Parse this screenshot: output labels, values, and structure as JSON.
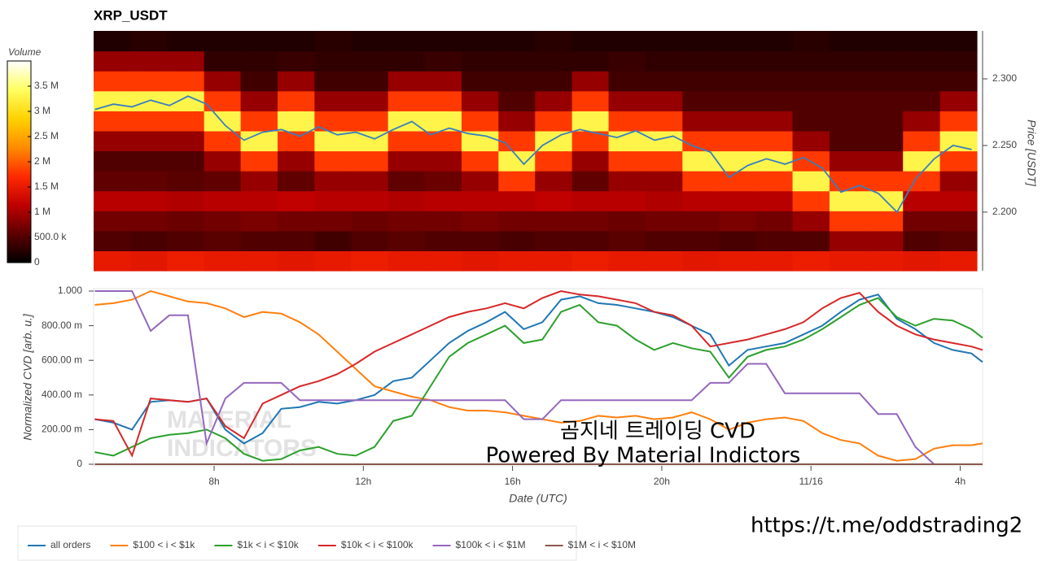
{
  "chart_data": [
    {
      "type": "heatmap",
      "title": "XRP_USDT",
      "x_edges": [
        4.77,
        5.76,
        6.74,
        7.73,
        8.71,
        9.7,
        10.69,
        11.67,
        12.66,
        13.64,
        14.63,
        15.62,
        16.6,
        17.59,
        18.57,
        19.56,
        20.55,
        21.53,
        22.52,
        23.5,
        24.49,
        25.48,
        26.46,
        27.45,
        28.44
      ],
      "y_edges": [
        2.156,
        2.171,
        2.186,
        2.201,
        2.216,
        2.231,
        2.246,
        2.261,
        2.276,
        2.291,
        2.306,
        2.321,
        2.336
      ],
      "values": [
        [
          1500000,
          1450000,
          1550000,
          1500000,
          1500000,
          1450000,
          1500000,
          1550000,
          1500000,
          1500000,
          1450000,
          1500000,
          1500000,
          1550000,
          1500000,
          1500000,
          1450000,
          1500000,
          1500000,
          1550000,
          1500000,
          1500000,
          1450000,
          1500000
        ],
        [
          500000,
          450000,
          500000,
          550000,
          500000,
          500000,
          400000,
          500000,
          550000,
          500000,
          500000,
          450000,
          500000,
          500000,
          550000,
          500000,
          500000,
          450000,
          500000,
          500000,
          900000,
          900000,
          500000,
          550000
        ],
        [
          700000,
          700000,
          650000,
          700000,
          750000,
          700000,
          700000,
          650000,
          700000,
          700000,
          750000,
          700000,
          700000,
          700000,
          650000,
          700000,
          700000,
          750000,
          700000,
          900000,
          1800000,
          1800000,
          700000,
          700000
        ],
        [
          1100000,
          1100000,
          1050000,
          1100000,
          1100000,
          1150000,
          1100000,
          1100000,
          1050000,
          1100000,
          1100000,
          1100000,
          1150000,
          1100000,
          1100000,
          1050000,
          1100000,
          1100000,
          1100000,
          1800000,
          3300000,
          3300000,
          1100000,
          1100000
        ],
        [
          600000,
          600000,
          550000,
          600000,
          900000,
          600000,
          900000,
          900000,
          600000,
          650000,
          900000,
          1800000,
          900000,
          600000,
          900000,
          900000,
          1800000,
          1800000,
          1800000,
          3300000,
          1800000,
          1800000,
          1800000,
          900000
        ],
        [
          500000,
          500000,
          500000,
          900000,
          1800000,
          900000,
          1800000,
          1800000,
          900000,
          900000,
          1800000,
          3300000,
          1800000,
          900000,
          1800000,
          1800000,
          3300000,
          3300000,
          3300000,
          1800000,
          900000,
          900000,
          3300000,
          1800000
        ],
        [
          900000,
          900000,
          900000,
          1800000,
          3300000,
          1800000,
          3300000,
          3300000,
          1800000,
          1800000,
          3300000,
          1800000,
          3300000,
          1800000,
          3300000,
          3300000,
          1800000,
          1800000,
          1800000,
          900000,
          500000,
          500000,
          1800000,
          3300000
        ],
        [
          1800000,
          1800000,
          1800000,
          3300000,
          1800000,
          3300000,
          1800000,
          1800000,
          3300000,
          3300000,
          1800000,
          900000,
          1800000,
          3300000,
          1800000,
          1800000,
          900000,
          900000,
          900000,
          500000,
          500000,
          500000,
          900000,
          1800000
        ],
        [
          3300000,
          3300000,
          3300000,
          1800000,
          900000,
          1800000,
          900000,
          900000,
          1800000,
          1800000,
          900000,
          500000,
          900000,
          1800000,
          900000,
          900000,
          500000,
          500000,
          500000,
          500000,
          500000,
          500000,
          500000,
          900000
        ],
        [
          1800000,
          1800000,
          1800000,
          900000,
          400000,
          900000,
          400000,
          400000,
          900000,
          900000,
          400000,
          400000,
          400000,
          900000,
          400000,
          400000,
          400000,
          400000,
          400000,
          400000,
          400000,
          400000,
          400000,
          400000
        ],
        [
          900000,
          900000,
          900000,
          300000,
          300000,
          350000,
          300000,
          300000,
          300000,
          350000,
          300000,
          300000,
          300000,
          300000,
          350000,
          300000,
          300000,
          300000,
          300000,
          300000,
          300000,
          300000,
          300000,
          300000
        ],
        [
          200000,
          250000,
          200000,
          200000,
          200000,
          200000,
          250000,
          200000,
          200000,
          200000,
          200000,
          200000,
          250000,
          200000,
          200000,
          200000,
          200000,
          200000,
          200000,
          250000,
          200000,
          200000,
          200000,
          200000
        ]
      ],
      "colorscale": [
        "#000000",
        "#5c0000",
        "#c00000",
        "#ff2a00",
        "#ff8c00",
        "#ffd200",
        "#ffff60",
        "#ffffff"
      ],
      "colorbar": {
        "title": "Volume",
        "lim": [
          0,
          4000000
        ],
        "ticks": [
          0,
          {
            "value": 500000,
            "label": "500.0 k"
          },
          {
            "value": 1000000,
            "label": "1 M"
          },
          {
            "value": 1500000,
            "label": "1.5 M"
          },
          {
            "value": 2000000,
            "label": "2 M"
          },
          {
            "value": 2500000,
            "label": "2.5 M"
          },
          {
            "value": 3000000,
            "label": "3 M"
          },
          {
            "value": 3500000,
            "label": "3.5 M"
          }
        ]
      },
      "xlim": [
        4.77,
        28.44
      ],
      "ylim": [
        2.156,
        2.336
      ],
      "yticks": [
        {
          "value": 2.2,
          "label": "2.200"
        },
        {
          "value": 2.25,
          "label": "2.250"
        },
        {
          "value": 2.3,
          "label": "2.300"
        }
      ],
      "ylabel": "Price [USDT]",
      "line": {
        "color": "#3a7ebf",
        "x": [
          4.8,
          5.3,
          5.8,
          6.3,
          6.8,
          7.3,
          7.8,
          8.3,
          8.8,
          9.3,
          9.8,
          10.3,
          10.8,
          11.3,
          11.8,
          12.3,
          12.8,
          13.3,
          13.8,
          14.3,
          14.8,
          15.3,
          15.8,
          16.3,
          16.8,
          17.3,
          17.8,
          18.3,
          18.8,
          19.3,
          19.8,
          20.3,
          20.8,
          21.3,
          21.8,
          22.3,
          22.8,
          23.3,
          23.8,
          24.3,
          24.8,
          25.3,
          25.8,
          26.3,
          26.8,
          27.3,
          27.8,
          28.3
        ],
        "values": [
          2.277,
          2.281,
          2.279,
          2.284,
          2.28,
          2.287,
          2.281,
          2.265,
          2.254,
          2.26,
          2.262,
          2.257,
          2.264,
          2.258,
          2.26,
          2.255,
          2.262,
          2.268,
          2.258,
          2.263,
          2.259,
          2.257,
          2.252,
          2.236,
          2.25,
          2.258,
          2.262,
          2.259,
          2.256,
          2.261,
          2.254,
          2.257,
          2.25,
          2.245,
          2.226,
          2.235,
          2.24,
          2.236,
          2.241,
          2.233,
          2.215,
          2.22,
          2.214,
          2.2,
          2.225,
          2.24,
          2.25,
          2.247
        ]
      }
    },
    {
      "type": "line",
      "x": [
        4.8,
        5.3,
        5.8,
        6.3,
        6.8,
        7.3,
        7.8,
        8.3,
        8.8,
        9.3,
        9.8,
        10.3,
        10.8,
        11.3,
        11.8,
        12.3,
        12.8,
        13.3,
        13.8,
        14.3,
        14.8,
        15.3,
        15.8,
        16.3,
        16.8,
        17.3,
        17.8,
        18.3,
        18.8,
        19.3,
        19.8,
        20.3,
        20.8,
        21.3,
        21.8,
        22.3,
        22.8,
        23.3,
        23.8,
        24.3,
        24.8,
        25.3,
        25.8,
        26.3,
        26.8,
        27.3,
        27.8,
        28.3,
        28.6
      ],
      "xlim": [
        4.77,
        28.6
      ],
      "xticks": [
        {
          "value": 8,
          "label": "8h"
        },
        {
          "value": 12,
          "label": "12h"
        },
        {
          "value": 16,
          "label": "16h"
        },
        {
          "value": 20,
          "label": "20h"
        },
        {
          "value": 24,
          "label": "11/16"
        },
        {
          "value": 28,
          "label": "4h"
        }
      ],
      "xlabel": "Date (UTC)",
      "ylim": [
        0,
        1
      ],
      "yticks": [
        0,
        {
          "value": 0.2,
          "label": "200.00 m"
        },
        {
          "value": 0.4,
          "label": "400.00 m"
        },
        {
          "value": 0.6,
          "label": "600.00 m"
        },
        {
          "value": 0.8,
          "label": "800.00 m"
        },
        {
          "value": 1,
          "label": "1.000"
        }
      ],
      "ylabel": "Normalized CVD [arb. u.]",
      "series": [
        {
          "name": "all orders",
          "color": "#1f77b4",
          "values": [
            0.26,
            0.24,
            0.2,
            0.36,
            0.37,
            0.36,
            0.38,
            0.2,
            0.12,
            0.18,
            0.32,
            0.33,
            0.36,
            0.35,
            0.37,
            0.4,
            0.48,
            0.5,
            0.6,
            0.7,
            0.77,
            0.82,
            0.88,
            0.78,
            0.82,
            0.95,
            0.97,
            0.93,
            0.92,
            0.9,
            0.88,
            0.85,
            0.8,
            0.75,
            0.57,
            0.66,
            0.68,
            0.7,
            0.75,
            0.8,
            0.88,
            0.95,
            0.98,
            0.84,
            0.78,
            0.7,
            0.66,
            0.64,
            0.59
          ]
        },
        {
          "name": "$100 < i < $1k",
          "color": "#ff7f0e",
          "values": [
            0.92,
            0.93,
            0.95,
            1.0,
            0.97,
            0.94,
            0.93,
            0.9,
            0.85,
            0.88,
            0.87,
            0.82,
            0.75,
            0.65,
            0.55,
            0.45,
            0.42,
            0.39,
            0.37,
            0.33,
            0.31,
            0.31,
            0.3,
            0.28,
            0.26,
            0.24,
            0.25,
            0.28,
            0.27,
            0.28,
            0.26,
            0.27,
            0.3,
            0.26,
            0.2,
            0.24,
            0.26,
            0.27,
            0.25,
            0.18,
            0.14,
            0.12,
            0.05,
            0.02,
            0.03,
            0.09,
            0.11,
            0.11,
            0.12
          ]
        },
        {
          "name": "$1k < i < $10k",
          "color": "#2ca02c",
          "values": [
            0.07,
            0.05,
            0.1,
            0.15,
            0.17,
            0.18,
            0.2,
            0.15,
            0.06,
            0.02,
            0.03,
            0.08,
            0.1,
            0.06,
            0.05,
            0.1,
            0.25,
            0.28,
            0.45,
            0.62,
            0.7,
            0.75,
            0.8,
            0.7,
            0.72,
            0.88,
            0.92,
            0.82,
            0.8,
            0.72,
            0.66,
            0.7,
            0.67,
            0.65,
            0.5,
            0.62,
            0.66,
            0.68,
            0.72,
            0.78,
            0.85,
            0.92,
            0.96,
            0.85,
            0.8,
            0.84,
            0.83,
            0.78,
            0.73
          ]
        },
        {
          "name": "$10k < i < $100k",
          "color": "#d62728",
          "values": [
            0.26,
            0.25,
            0.05,
            0.38,
            0.37,
            0.36,
            0.38,
            0.22,
            0.15,
            0.35,
            0.4,
            0.45,
            0.48,
            0.52,
            0.58,
            0.65,
            0.7,
            0.75,
            0.8,
            0.85,
            0.88,
            0.9,
            0.93,
            0.9,
            0.96,
            1.0,
            0.98,
            0.97,
            0.95,
            0.93,
            0.88,
            0.86,
            0.8,
            0.68,
            0.7,
            0.72,
            0.75,
            0.78,
            0.82,
            0.9,
            0.96,
            0.99,
            0.88,
            0.8,
            0.75,
            0.72,
            0.7,
            0.68,
            0.66
          ]
        },
        {
          "name": "$100k < i < $1M",
          "color": "#9467bd",
          "values": [
            1.0,
            1.0,
            1.0,
            0.77,
            0.86,
            0.86,
            0.12,
            0.38,
            0.47,
            0.47,
            0.47,
            0.37,
            0.37,
            0.37,
            0.37,
            0.37,
            0.37,
            0.37,
            0.37,
            0.37,
            0.37,
            0.37,
            0.37,
            0.26,
            0.26,
            0.37,
            0.37,
            0.37,
            0.37,
            0.37,
            0.37,
            0.37,
            0.37,
            0.47,
            0.47,
            0.58,
            0.58,
            0.41,
            0.41,
            0.41,
            0.41,
            0.41,
            0.29,
            0.29,
            0.1,
            0,
            0,
            0,
            0
          ]
        },
        {
          "name": "$1M < i < $10M",
          "color": "#8c564b",
          "values": [
            0,
            0,
            0,
            0,
            0,
            0,
            0,
            0,
            0,
            0,
            0,
            0,
            0,
            0,
            0,
            0,
            0,
            0,
            0,
            0,
            0,
            0,
            0,
            0,
            0,
            0,
            0,
            0,
            0,
            0,
            0,
            0,
            0,
            0,
            0,
            0,
            0,
            0,
            0,
            0,
            0,
            0,
            0,
            0,
            0,
            0,
            0,
            0,
            0
          ]
        }
      ],
      "watermark": [
        "MATERIAL",
        "INDICATORS"
      ],
      "annotations": [
        "곰지네 트레이딩 CVD",
        "Powered By Material Indictors"
      ]
    }
  ],
  "link": "https://t.me/oddstrading2"
}
